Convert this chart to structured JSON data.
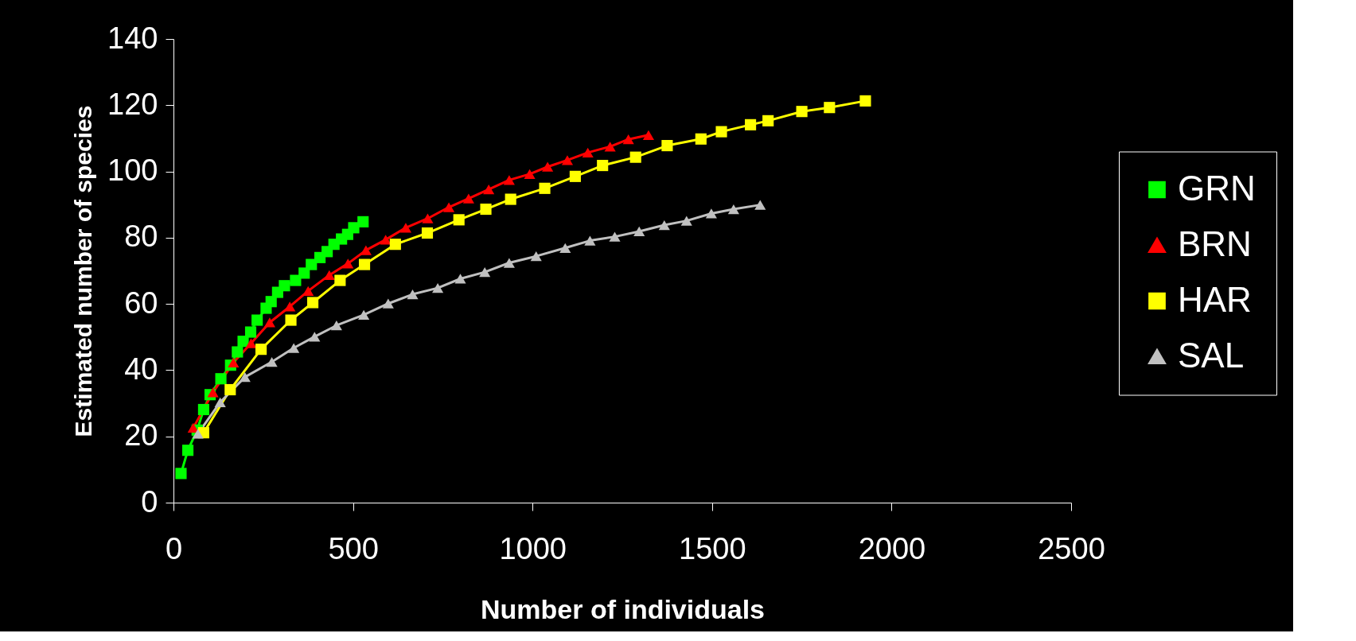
{
  "chart_data": {
    "type": "line",
    "xlabel": "Number of individuals",
    "ylabel": "Estimated number of species",
    "xlim": [
      0,
      2500
    ],
    "xticks": [
      0,
      500,
      1000,
      1500,
      2000,
      2500
    ],
    "ylim": [
      0,
      140
    ],
    "yticks": [
      0,
      20,
      40,
      60,
      80,
      100,
      120,
      140
    ],
    "grid": false,
    "legend": "right",
    "line_style": "solid",
    "series": [
      {
        "name": "GRN",
        "color": "#00ff00",
        "marker": "square",
        "x": [
          21,
          40,
          66,
          84,
          102,
          132,
          159,
          178,
          194,
          215,
          233,
          258,
          272,
          290,
          309,
          340,
          364,
          384,
          408,
          428,
          447,
          468,
          485,
          502,
          528
        ],
        "values": [
          8.8,
          15.8,
          21.9,
          28.1,
          32.6,
          37.4,
          41.5,
          45.5,
          48.7,
          51.5,
          55.1,
          58.7,
          60.7,
          63.5,
          65.5,
          67.1,
          69.3,
          71.9,
          74.0,
          75.8,
          78.0,
          79.6,
          81.0,
          83.0,
          84.8
        ]
      },
      {
        "name": "BRN",
        "color": "#ff0000",
        "marker": "triangle",
        "x": [
          55,
          110,
          167,
          216,
          268,
          324,
          375,
          434,
          486,
          536,
          591,
          647,
          708,
          767,
          822,
          878,
          935,
          992,
          1042,
          1097,
          1154,
          1216,
          1267,
          1323
        ],
        "values": [
          22.6,
          33.3,
          42.3,
          48.1,
          54.4,
          59.2,
          63.9,
          68.7,
          72.2,
          76.2,
          79.4,
          83.0,
          85.8,
          89.2,
          91.8,
          94.6,
          97.4,
          99.2,
          101.4,
          103.4,
          105.7,
          107.5,
          109.7,
          111.0
        ]
      },
      {
        "name": "HAR",
        "color": "#ffff00",
        "marker": "square",
        "x": [
          84,
          158,
          244,
          327,
          388,
          464,
          532,
          618,
          707,
          795,
          870,
          939,
          1034,
          1119,
          1195,
          1287,
          1375,
          1469,
          1526,
          1607,
          1656,
          1750,
          1827,
          1927
        ],
        "values": [
          21.1,
          34.1,
          46.3,
          55.1,
          60.4,
          67.1,
          71.9,
          78.0,
          81.4,
          85.4,
          88.6,
          91.6,
          94.9,
          98.5,
          101.8,
          104.3,
          107.8,
          109.8,
          112.0,
          114.1,
          115.3,
          118.1,
          119.3,
          121.3
        ]
      },
      {
        "name": "SAL",
        "color": "#c0c0c0",
        "marker": "triangle",
        "x": [
          68,
          130,
          199,
          274,
          335,
          393,
          454,
          530,
          598,
          666,
          736,
          799,
          867,
          935,
          1010,
          1091,
          1160,
          1229,
          1297,
          1367,
          1429,
          1498,
          1560,
          1634
        ],
        "values": [
          20.8,
          30.3,
          37.9,
          42.5,
          46.7,
          50.1,
          53.5,
          56.7,
          60.1,
          62.9,
          64.8,
          67.6,
          69.6,
          72.4,
          74.4,
          76.9,
          79.1,
          80.3,
          81.9,
          83.8,
          85.1,
          87.3,
          88.6,
          89.9
        ]
      }
    ]
  }
}
